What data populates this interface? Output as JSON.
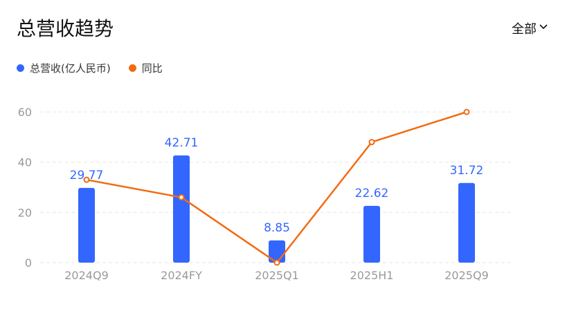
{
  "header": {
    "title": "总营收趋势",
    "filter_label": "全部"
  },
  "icons": {
    "filter": "chevron-down-icon"
  },
  "colors": {
    "bar": "#3366ff",
    "line": "#f26b12",
    "grid": "#e6e6e6",
    "tick": "#999999",
    "label": "#3366ff"
  },
  "chart_data": {
    "type": "bar",
    "categories": [
      "2024Q9",
      "2024FY",
      "2025Q1",
      "2025H1",
      "2025Q9"
    ],
    "series": [
      {
        "name": "总营收(亿人民币)",
        "type": "bar",
        "values": [
          29.77,
          42.71,
          8.85,
          22.62,
          31.72
        ],
        "labels": [
          "29.77",
          "42.71",
          "8.85",
          "22.62",
          "31.72"
        ]
      },
      {
        "name": "同比",
        "type": "line",
        "values": [
          33,
          26,
          0,
          48,
          60
        ]
      }
    ],
    "yticks": [
      0,
      20,
      40,
      60
    ],
    "ylim": [
      0,
      60
    ],
    "grid": true,
    "legend_position": "top-left"
  }
}
